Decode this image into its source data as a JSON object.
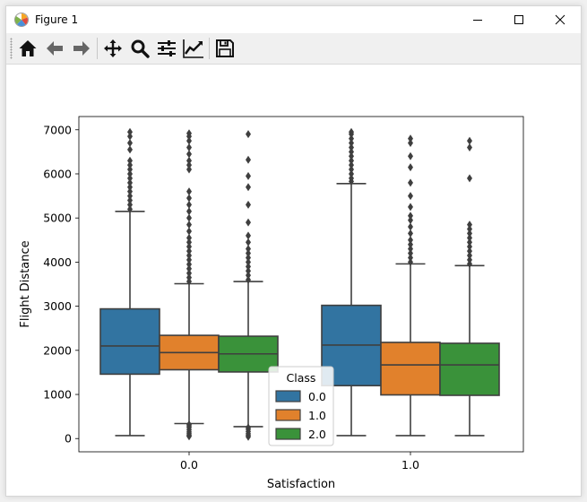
{
  "window": {
    "title": "Figure 1"
  },
  "toolbar": {
    "buttons": [
      {
        "name": "home-button",
        "icon": "home-icon"
      },
      {
        "name": "back-button",
        "icon": "arrow-left-icon"
      },
      {
        "name": "forward-button",
        "icon": "arrow-right-icon"
      },
      {
        "name": "pan-button",
        "icon": "move-icon"
      },
      {
        "name": "zoom-button",
        "icon": "search-icon"
      },
      {
        "name": "subplots-button",
        "icon": "sliders-icon"
      },
      {
        "name": "edit-axes-button",
        "icon": "line-chart-icon"
      },
      {
        "name": "save-button",
        "icon": "floppy-disk-icon"
      }
    ]
  },
  "chart_data": {
    "type": "box",
    "xlabel": "Satisfaction",
    "ylabel": "Flight Distance",
    "categories": [
      "0.0",
      "1.0"
    ],
    "ylim": [
      -300,
      7300
    ],
    "yticks": [
      0,
      1000,
      2000,
      3000,
      4000,
      5000,
      6000,
      7000
    ],
    "legend": {
      "title": "Class",
      "location": "lower center"
    },
    "series": [
      {
        "name": "0.0",
        "color": "#3274a1",
        "boxes": [
          {
            "category": "0.0",
            "whisker_low": 67,
            "q1": 1460,
            "median": 2100,
            "q3": 2940,
            "whisker_high": 5150,
            "outliers_high": [
              5200,
              5300,
              5400,
              5500,
              5600,
              5700,
              5800,
              5900,
              6000,
              6100,
              6200,
              6300,
              6550,
              6700,
              6850,
              6950
            ]
          },
          {
            "category": "1.0",
            "whisker_low": 67,
            "q1": 1200,
            "median": 2120,
            "q3": 3020,
            "whisker_high": 5780,
            "outliers_high": [
              5830,
              5900,
              6000,
              6100,
              6200,
              6300,
              6400,
              6500,
              6600,
              6700,
              6800,
              6900,
              6950
            ]
          }
        ]
      },
      {
        "name": "1.0",
        "color": "#e1812c",
        "boxes": [
          {
            "category": "0.0",
            "whisker_low": 340,
            "q1": 1560,
            "median": 1950,
            "q3": 2340,
            "whisker_high": 3510,
            "outliers_low": [
              50,
              70,
              110,
              150,
              200,
              250,
              290,
              320
            ],
            "outliers_high": [
              3560,
              3650,
              3750,
              3850,
              3950,
              4050,
              4150,
              4250,
              4350,
              4450,
              4550,
              4700,
              4850,
              5000,
              5150,
              5300,
              5450,
              5600,
              6100,
              6200,
              6300,
              6450,
              6600,
              6750,
              6850,
              6920
            ]
          },
          {
            "category": "1.0",
            "whisker_low": 67,
            "q1": 990,
            "median": 1670,
            "q3": 2180,
            "whisker_high": 3960,
            "outliers_high": [
              4000,
              4100,
              4200,
              4300,
              4400,
              4500,
              4650,
              4800,
              4950,
              5050,
              5250,
              5500,
              5800,
              6150,
              6400,
              6700,
              6800
            ]
          }
        ]
      },
      {
        "name": "2.0",
        "color": "#3a923a",
        "boxes": [
          {
            "category": "0.0",
            "whisker_low": 270,
            "q1": 1510,
            "median": 1920,
            "q3": 2320,
            "whisker_high": 3560,
            "outliers_low": [
              40,
              70,
              110,
              160,
              210,
              250
            ],
            "outliers_high": [
              3600,
              3700,
              3800,
              3900,
              4000,
              4100,
              4200,
              4300,
              4450,
              4600,
              4900,
              5300,
              5700,
              5950,
              6320,
              6900
            ]
          },
          {
            "category": "1.0",
            "whisker_low": 67,
            "q1": 980,
            "median": 1670,
            "q3": 2160,
            "whisker_high": 3920,
            "outliers_high": [
              3960,
              4050,
              4150,
              4250,
              4350,
              4450,
              4550,
              4650,
              4750,
              4850,
              5900,
              6600,
              6750
            ]
          }
        ]
      }
    ]
  }
}
